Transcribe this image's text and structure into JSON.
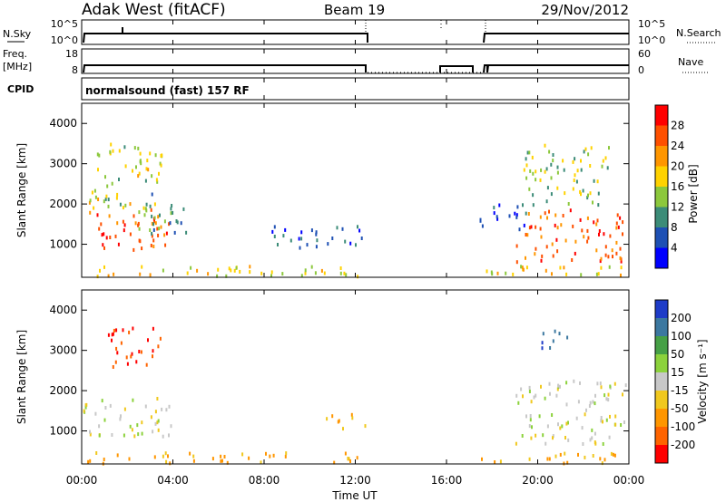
{
  "header": {
    "station": "Adak West (fitACF)",
    "beam": "Beam 19",
    "date": "29/Nov/2012"
  },
  "noise_panel": {
    "left_label": "N.Sky",
    "right_label": "N.Search",
    "left_ticks": [
      "10^5",
      "10^0"
    ],
    "right_ticks": [
      "10^5",
      "10^0"
    ]
  },
  "freq_panel": {
    "left_label_1": "Freq.",
    "left_label_2": "[MHz]",
    "right_label": "Nave",
    "left_ticks": [
      "18",
      "8"
    ],
    "right_ticks": [
      "60",
      "0"
    ]
  },
  "cpid_panel": {
    "label": "CPID",
    "text": "normalsound (fast) 157 RF"
  },
  "range_axis": {
    "label": "Slant Range [km]",
    "ticks": [
      "1000",
      "2000",
      "3000",
      "4000"
    ]
  },
  "time_axis": {
    "label": "Time UT",
    "ticks": [
      "00:00",
      "04:00",
      "08:00",
      "12:00",
      "16:00",
      "20:00",
      "00:00"
    ]
  },
  "power_colorbar": {
    "label": "Power [dB]",
    "ticks": [
      "4",
      "8",
      "12",
      "16",
      "20",
      "24",
      "28"
    ],
    "colors": [
      "#0000ff",
      "#1e50b4",
      "#3c8c78",
      "#8cc83c",
      "#ffd200",
      "#ff9600",
      "#ff5000",
      "#ff0000"
    ]
  },
  "velocity_colorbar": {
    "label": "Velocity [m s⁻¹]",
    "ticks": [
      "200",
      "100",
      "50",
      "15",
      "-15",
      "-50",
      "-100",
      "-200"
    ],
    "colors": [
      "#1e3cc8",
      "#3c78a0",
      "#46a046",
      "#8cd23c",
      "#c8c8c8",
      "#f0c81e",
      "#ff9600",
      "#ff6400",
      "#ff0000"
    ]
  },
  "chart_data": [
    {
      "type": "heatmap",
      "ylabel": "Slant Range [km]",
      "xlabel": "",
      "colorbar": "Power [dB]",
      "xlim_hours": [
        0,
        24
      ],
      "ylim_km": [
        180,
        4500
      ],
      "regions": [
        {
          "t0": 0.0,
          "t1": 3.8,
          "r0": 800,
          "r1": 1900,
          "value": 26
        },
        {
          "t0": 2.2,
          "t1": 4.6,
          "r0": 1300,
          "r1": 2300,
          "value": 10
        },
        {
          "t0": 0.3,
          "t1": 3.5,
          "r0": 1900,
          "r1": 3600,
          "value": 16
        },
        {
          "t0": 8.3,
          "t1": 12.4,
          "r0": 900,
          "r1": 1500,
          "value": 6
        },
        {
          "t0": 17.4,
          "t1": 19.5,
          "r0": 1400,
          "r1": 2100,
          "value": 6
        },
        {
          "t0": 19.0,
          "t1": 24.0,
          "r0": 600,
          "r1": 1900,
          "value": 25
        },
        {
          "t0": 19.3,
          "t1": 23.2,
          "r0": 2000,
          "r1": 3500,
          "value": 15
        },
        {
          "t0": 0.0,
          "t1": 12.4,
          "r0": 180,
          "r1": 500,
          "value": 18
        },
        {
          "t0": 17.4,
          "t1": 24.0,
          "r0": 180,
          "r1": 500,
          "value": 18
        }
      ]
    },
    {
      "type": "heatmap",
      "ylabel": "Slant Range [km]",
      "xlabel": "Time UT",
      "colorbar": "Velocity [m s⁻¹]",
      "xlim_hours": [
        0,
        24
      ],
      "ylim_km": [
        180,
        4500
      ],
      "regions": [
        {
          "t0": 0.0,
          "t1": 4.0,
          "r0": 900,
          "r1": 1900,
          "value": 0
        },
        {
          "t0": 1.0,
          "t1": 3.5,
          "r0": 2600,
          "r1": 3600,
          "value": -200
        },
        {
          "t0": 10.5,
          "t1": 12.4,
          "r0": 1100,
          "r1": 1500,
          "value": -60
        },
        {
          "t0": 19.0,
          "t1": 24.0,
          "r0": 700,
          "r1": 2300,
          "value": 0
        },
        {
          "t0": 20.0,
          "t1": 21.5,
          "r0": 3100,
          "r1": 3600,
          "value": 200
        },
        {
          "t0": 0.0,
          "t1": 12.4,
          "r0": 180,
          "r1": 500,
          "value": -60
        },
        {
          "t0": 17.4,
          "t1": 24.0,
          "r0": 180,
          "r1": 500,
          "value": -60
        }
      ]
    }
  ]
}
